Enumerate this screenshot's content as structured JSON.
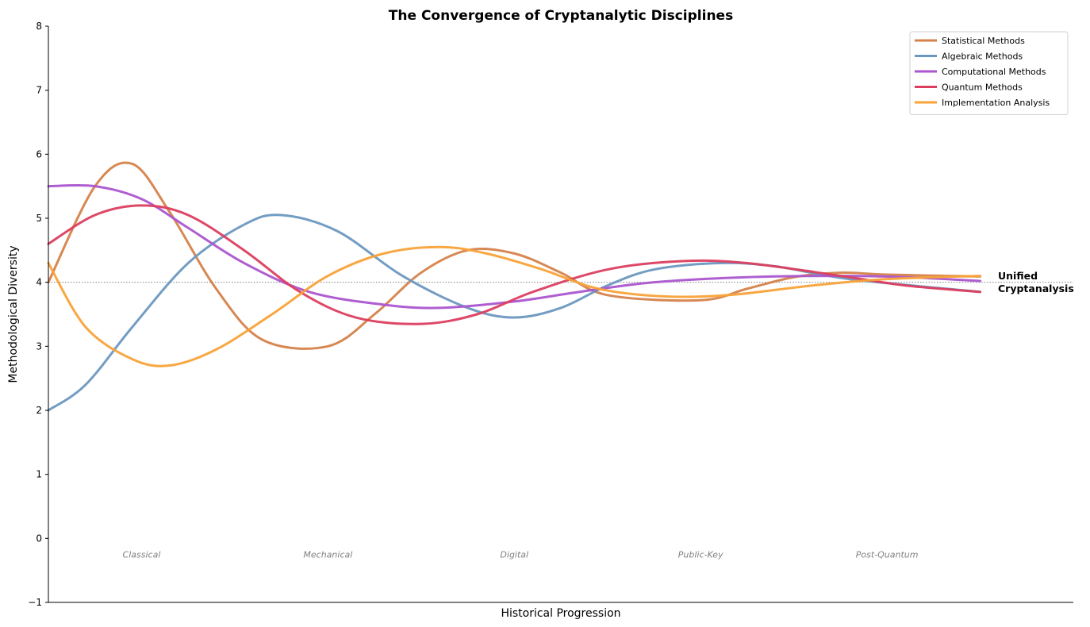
{
  "chart_data": {
    "type": "line",
    "title": "The Convergence of Cryptanalytic Disciplines",
    "xlabel": "Historical Progression",
    "ylabel": "Methodological Diversity",
    "xlim": [
      0,
      110
    ],
    "ylim": [
      -1,
      8
    ],
    "yticks": [
      "−1",
      "0",
      "1",
      "2",
      "3",
      "4",
      "5",
      "6",
      "7",
      "8"
    ],
    "ytick_values": [
      -1,
      0,
      1,
      2,
      3,
      4,
      5,
      6,
      7,
      8
    ],
    "grid": false,
    "legend_position": "top-right",
    "reference_line": {
      "y": 4,
      "style": "dotted"
    },
    "annotation": {
      "line1": "Unified",
      "line2": "Cryptanalysis",
      "x": 100,
      "y": 4
    },
    "eras": [
      {
        "label": "Classical",
        "x": 10
      },
      {
        "label": "Mechanical",
        "x": 30
      },
      {
        "label": "Digital",
        "x": 50
      },
      {
        "label": "Public-Key",
        "x": 70
      },
      {
        "label": "Post-Quantum",
        "x": 90
      }
    ],
    "era_label_y": -0.25,
    "x": [
      0,
      5,
      10,
      15,
      20,
      25,
      30,
      35,
      40,
      45,
      50,
      55,
      60,
      65,
      70,
      75,
      80,
      85,
      90,
      95,
      100
    ],
    "series": [
      {
        "name": "Statistical Methods",
        "color": "#D5824A",
        "values": [
          4.0,
          5.5,
          5.85,
          5.1,
          3.9,
          3.1,
          3.0,
          3.5,
          4.15,
          4.5,
          4.45,
          4.15,
          3.8,
          3.72,
          3.9,
          4.08,
          4.15,
          4.12,
          4.09
        ],
        "x": [
          0,
          5,
          9,
          13,
          18,
          23,
          30,
          35,
          40,
          45,
          50,
          55,
          60,
          70,
          75,
          80,
          85,
          90,
          100
        ]
      },
      {
        "name": "Algebraic Methods",
        "color": "#6B98C0",
        "values": [
          2.0,
          2.4,
          3.3,
          4.3,
          4.9,
          5.05,
          4.8,
          4.1,
          3.6,
          3.45,
          3.6,
          3.95,
          4.2,
          4.3,
          4.25,
          4.05,
          3.85
        ],
        "x": [
          0,
          4,
          9,
          15,
          21,
          25,
          31,
          38,
          45,
          50,
          55,
          60,
          65,
          72,
          78,
          86,
          100
        ]
      },
      {
        "name": "Computational Methods",
        "color": "#AB55CF",
        "values": [
          5.5,
          5.5,
          5.3,
          4.85,
          4.3,
          3.85,
          3.65,
          3.6,
          3.7,
          3.85,
          4.0,
          4.08,
          4.1,
          4.08,
          4.02
        ],
        "x": [
          0,
          5,
          10,
          15,
          21,
          28,
          36,
          42,
          50,
          57,
          65,
          75,
          85,
          92,
          100
        ]
      },
      {
        "name": "Quantum Methods",
        "color": "#DC3E5F",
        "values": [
          4.6,
          5.05,
          5.2,
          5.05,
          4.5,
          3.85,
          3.45,
          3.35,
          3.5,
          3.85,
          4.2,
          4.33,
          4.3,
          4.1,
          3.95,
          3.85
        ],
        "x": [
          0,
          5,
          10,
          15,
          21,
          27,
          33,
          40,
          46,
          52,
          60,
          68,
          75,
          85,
          92,
          100
        ]
      },
      {
        "name": "Implementation Analysis",
        "color": "#F8A238",
        "values": [
          4.3,
          3.3,
          2.8,
          2.7,
          2.95,
          3.5,
          4.1,
          4.45,
          4.55,
          4.45,
          4.2,
          3.9,
          3.78,
          3.8,
          3.95,
          4.05,
          4.1
        ],
        "x": [
          0,
          4,
          9,
          13,
          18,
          24,
          30,
          36,
          42,
          47,
          53,
          59,
          66,
          73,
          82,
          90,
          100
        ]
      }
    ]
  }
}
